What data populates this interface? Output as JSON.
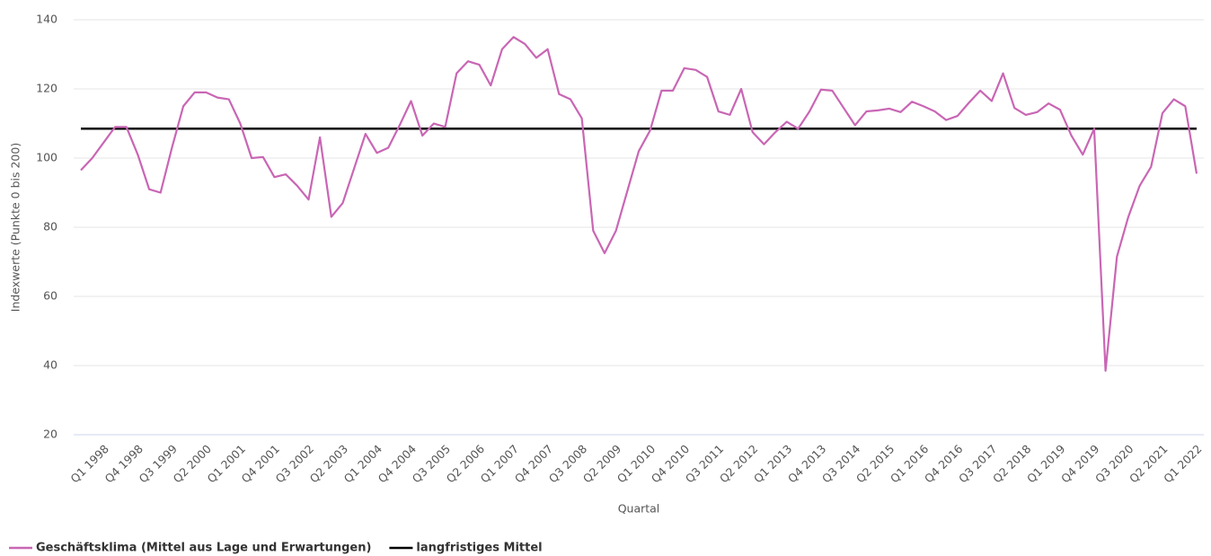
{
  "chart_data": {
    "type": "line",
    "x_label": "Quartal",
    "y_label": "Indexwerte (Punkte 0 bis 200)",
    "categories": [
      null,
      null,
      "Q1 1998",
      null,
      null,
      "Q4 1998",
      null,
      null,
      "Q3 1999",
      null,
      null,
      "Q2 2000",
      null,
      null,
      "Q1 2001",
      null,
      null,
      "Q4 2001",
      null,
      null,
      "Q3 2002",
      null,
      null,
      "Q2 2003",
      null,
      null,
      "Q1 2004",
      null,
      null,
      "Q4 2004",
      null,
      null,
      "Q3 2005",
      null,
      null,
      "Q2 2006",
      null,
      null,
      "Q1 2007",
      null,
      null,
      "Q4 2007",
      null,
      null,
      "Q3 2008",
      null,
      null,
      "Q2 2009",
      null,
      null,
      "Q1 2010",
      null,
      null,
      "Q4 2010",
      null,
      null,
      "Q3 2011",
      null,
      null,
      "Q2 2012",
      null,
      null,
      "Q1 2013",
      null,
      null,
      "Q4 2013",
      null,
      null,
      "Q3 2014",
      null,
      null,
      "Q2 2015",
      null,
      null,
      "Q1 2016",
      null,
      null,
      "Q4 2016",
      null,
      null,
      "Q3 2017",
      null,
      null,
      "Q2 2018",
      null,
      null,
      "Q1 2019",
      null,
      null,
      "Q4 2019",
      null,
      null,
      "Q3 2020",
      null,
      null,
      "Q2 2021",
      null,
      null,
      "Q1 2022"
    ],
    "series": [
      {
        "name": "Geschäftsklima (Mittel aus Lage und Erwartungen)",
        "color": "#c966b4",
        "values": [
          96.5,
          100,
          104.5,
          109,
          109,
          101,
          91,
          90,
          103,
          115,
          119,
          119,
          117.5,
          117,
          110,
          100,
          100.3,
          94.5,
          95.3,
          92,
          88,
          106,
          83,
          87,
          97,
          107,
          101.5,
          103,
          109.5,
          116.5,
          106.5,
          110,
          109,
          124.5,
          128,
          127,
          121,
          131.5,
          135,
          133,
          129,
          131.5,
          118.5,
          117,
          111.5,
          79,
          72.5,
          79,
          90.5,
          102,
          108,
          119.5,
          119.5,
          126,
          125.5,
          123.5,
          113.5,
          112.5,
          120,
          107.5,
          104,
          107.5,
          110.5,
          108.5,
          113.5,
          119.8,
          119.5,
          114.5,
          109.5,
          113.5,
          113.8,
          114.3,
          113.3,
          116.3,
          115,
          113.5,
          111,
          112.2,
          116,
          119.5,
          116.5,
          124.5,
          114.5,
          112.5,
          113.3,
          115.8,
          114,
          106.5,
          101,
          108.5,
          38.5,
          71.5,
          83,
          92,
          97.5,
          113,
          117,
          115,
          95.5
        ]
      }
    ],
    "reference_line": {
      "name": "langfristiges Mittel",
      "color": "#000000",
      "value": 108.5
    },
    "ylim": [
      20,
      140
    ],
    "yticks": [
      20,
      40,
      60,
      80,
      100,
      120,
      140
    ],
    "grid": true
  }
}
